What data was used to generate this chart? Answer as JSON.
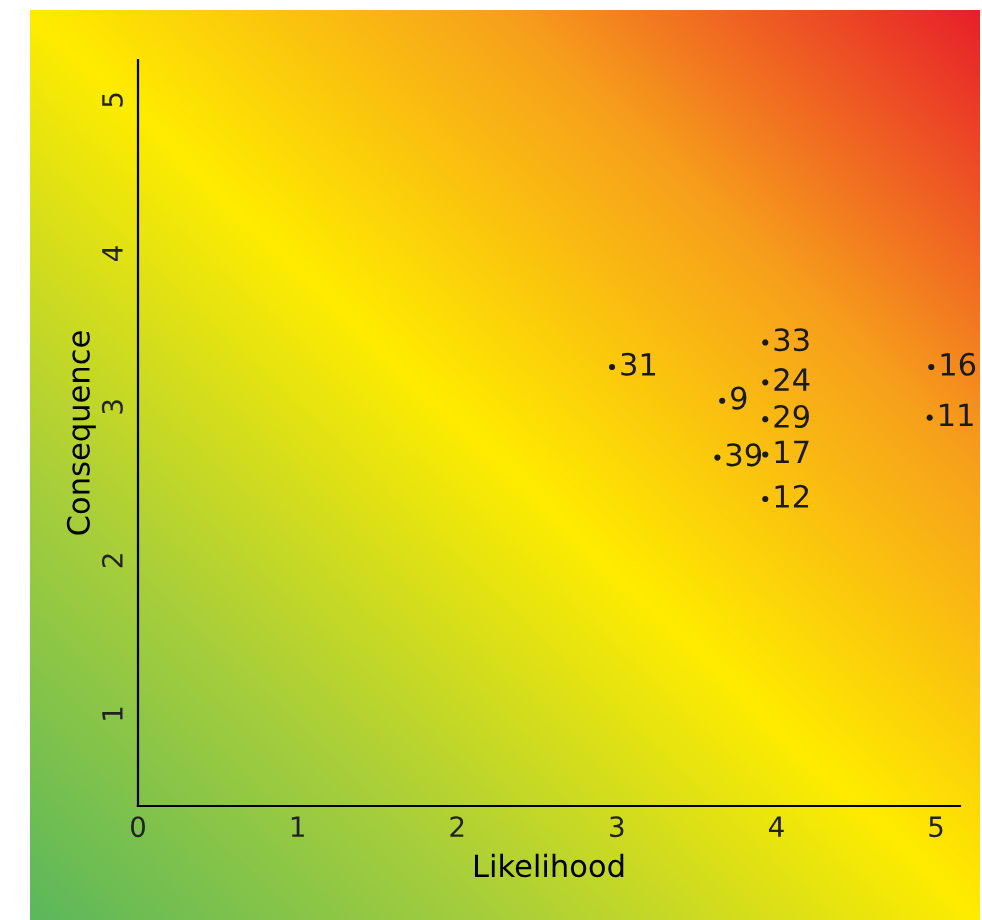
{
  "chart_data": {
    "type": "scatter",
    "xlabel": "Likelihood",
    "ylabel": "Consequence",
    "series": [
      {
        "name": "31",
        "color": "#1a1a1a",
        "x": [
          2.97
        ],
        "values": [
          3.26
        ]
      },
      {
        "name": "33",
        "color": "#1a1a1a",
        "x": [
          3.93
        ],
        "values": [
          3.42
        ]
      },
      {
        "name": "24",
        "color": "#1a1a1a",
        "x": [
          3.93
        ],
        "values": [
          3.16
        ]
      },
      {
        "name": "9",
        "color": "#1a1a1a",
        "x": [
          3.66
        ],
        "values": [
          3.04
        ]
      },
      {
        "name": "29",
        "color": "#1a1a1a",
        "x": [
          3.93
        ],
        "values": [
          2.92
        ]
      },
      {
        "name": "17",
        "color": "#1a1a1a",
        "x": [
          3.93
        ],
        "values": [
          2.69
        ]
      },
      {
        "name": "39",
        "color": "#1a1a1a",
        "x": [
          3.63
        ],
        "values": [
          2.67
        ]
      },
      {
        "name": "12",
        "color": "#1a1a1a",
        "x": [
          3.93
        ],
        "values": [
          2.4
        ]
      },
      {
        "name": "16",
        "color": "#1a1a1a",
        "x": [
          4.97
        ],
        "values": [
          3.26
        ]
      },
      {
        "name": "11",
        "color": "#1a1a1a",
        "x": [
          4.96
        ],
        "values": [
          2.93
        ]
      }
    ],
    "marker": "circle",
    "grid": false,
    "legend": false,
    "xlim": [
      0,
      5.15
    ],
    "ylim": [
      0.4,
      5.26
    ],
    "xticks": [
      0,
      1,
      2,
      3,
      4,
      5
    ],
    "yticks": [
      1,
      2,
      3,
      4,
      5
    ]
  }
}
